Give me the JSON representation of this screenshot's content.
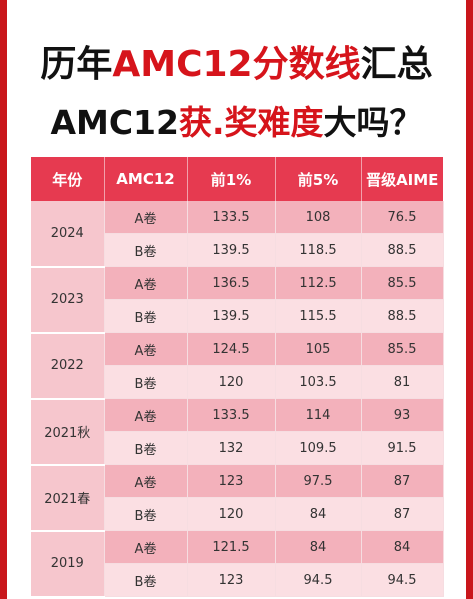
{
  "title": {
    "line1_prefix": "历年",
    "line1_highlight": "AMC12分数线",
    "line1_suffix": "汇总",
    "line2_prefix": "AMC12",
    "line2_highlight": "获.奖难度",
    "line2_suffix": "大吗？"
  },
  "table": {
    "headers": [
      "年份",
      "AMC12",
      "前1%",
      "前5%",
      "晋级AIME"
    ],
    "groups": [
      {
        "year": "2024",
        "rows": [
          {
            "paper": "A卷",
            "top1": "133.5",
            "top5": "108",
            "aime": "76.5"
          },
          {
            "paper": "B卷",
            "top1": "139.5",
            "top5": "118.5",
            "aime": "88.5"
          }
        ]
      },
      {
        "year": "2023",
        "rows": [
          {
            "paper": "A卷",
            "top1": "136.5",
            "top5": "112.5",
            "aime": "85.5"
          },
          {
            "paper": "B卷",
            "top1": "139.5",
            "top5": "115.5",
            "aime": "88.5"
          }
        ]
      },
      {
        "year": "2022",
        "rows": [
          {
            "paper": "A卷",
            "top1": "124.5",
            "top5": "105",
            "aime": "85.5"
          },
          {
            "paper": "B卷",
            "top1": "120",
            "top5": "103.5",
            "aime": "81"
          }
        ]
      },
      {
        "year": "2021秋",
        "rows": [
          {
            "paper": "A卷",
            "top1": "133.5",
            "top5": "114",
            "aime": "93"
          },
          {
            "paper": "B卷",
            "top1": "132",
            "top5": "109.5",
            "aime": "91.5"
          }
        ]
      },
      {
        "year": "2021春",
        "rows": [
          {
            "paper": "A卷",
            "top1": "123",
            "top5": "97.5",
            "aime": "87"
          },
          {
            "paper": "B卷",
            "top1": "120",
            "top5": "84",
            "aime": "87"
          }
        ]
      },
      {
        "year": "2019",
        "rows": [
          {
            "paper": "A卷",
            "top1": "121.5",
            "top5": "84",
            "aime": "84"
          },
          {
            "paper": "B卷",
            "top1": "123",
            "top5": "94.5",
            "aime": "94.5"
          }
        ]
      }
    ]
  },
  "colors": {
    "frame": "#c9161b",
    "title_highlight": "#d6141b",
    "header_bg": "#e63a50",
    "row_dark": "#f3b1bb",
    "row_light": "#fbdfe3",
    "year_bg": "#f6c6cd"
  }
}
